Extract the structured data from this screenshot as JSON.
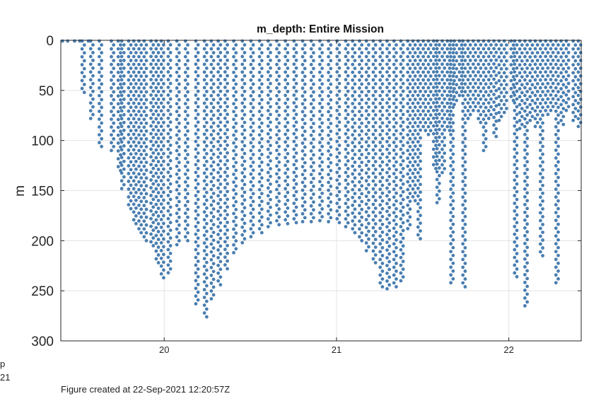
{
  "chart_data": {
    "type": "scatter",
    "title": "m_depth: Entire Mission",
    "xlabel": "",
    "ylabel": "m",
    "xlim": [
      19.4,
      22.42
    ],
    "ylim": [
      0,
      300
    ],
    "y_reversed": true,
    "x_ticks": [
      20,
      21,
      22
    ],
    "x_tick_labels": [
      "20",
      "21",
      "22"
    ],
    "y_ticks": [
      0,
      50,
      100,
      150,
      200,
      250,
      300
    ],
    "y_tick_labels": [
      "0",
      "50",
      "100",
      "150",
      "200",
      "250",
      "300"
    ],
    "grid": true,
    "marker_color": "#4a7eb0",
    "series": [
      {
        "name": "m_depth",
        "profiles": [
          {
            "x": 19.53,
            "max_depth": 52
          },
          {
            "x": 19.58,
            "max_depth": 78
          },
          {
            "x": 19.63,
            "max_depth": 106
          },
          {
            "x": 19.7,
            "max_depth": 110
          },
          {
            "x": 19.74,
            "max_depth": 130
          },
          {
            "x": 19.76,
            "max_depth": 148
          },
          {
            "x": 19.8,
            "max_depth": 168
          },
          {
            "x": 19.83,
            "max_depth": 183
          },
          {
            "x": 19.86,
            "max_depth": 192
          },
          {
            "x": 19.89,
            "max_depth": 200
          },
          {
            "x": 19.93,
            "max_depth": 205
          },
          {
            "x": 19.96,
            "max_depth": 222
          },
          {
            "x": 19.99,
            "max_depth": 237
          },
          {
            "x": 20.03,
            "max_depth": 232
          },
          {
            "x": 20.08,
            "max_depth": 204
          },
          {
            "x": 20.13,
            "max_depth": 200
          },
          {
            "x": 20.19,
            "max_depth": 263
          },
          {
            "x": 20.24,
            "max_depth": 276
          },
          {
            "x": 20.28,
            "max_depth": 258
          },
          {
            "x": 20.32,
            "max_depth": 244
          },
          {
            "x": 20.36,
            "max_depth": 228
          },
          {
            "x": 20.41,
            "max_depth": 212
          },
          {
            "x": 20.46,
            "max_depth": 202
          },
          {
            "x": 20.51,
            "max_depth": 196
          },
          {
            "x": 20.56,
            "max_depth": 192
          },
          {
            "x": 20.61,
            "max_depth": 186
          },
          {
            "x": 20.66,
            "max_depth": 184
          },
          {
            "x": 20.71,
            "max_depth": 183
          },
          {
            "x": 20.76,
            "max_depth": 182
          },
          {
            "x": 20.81,
            "max_depth": 181
          },
          {
            "x": 20.86,
            "max_depth": 181
          },
          {
            "x": 20.91,
            "max_depth": 180
          },
          {
            "x": 20.96,
            "max_depth": 181
          },
          {
            "x": 21.01,
            "max_depth": 182
          },
          {
            "x": 21.06,
            "max_depth": 186
          },
          {
            "x": 21.1,
            "max_depth": 192
          },
          {
            "x": 21.14,
            "max_depth": 200
          },
          {
            "x": 21.18,
            "max_depth": 210
          },
          {
            "x": 21.22,
            "max_depth": 222
          },
          {
            "x": 21.26,
            "max_depth": 246
          },
          {
            "x": 21.3,
            "max_depth": 248
          },
          {
            "x": 21.34,
            "max_depth": 246
          },
          {
            "x": 21.38,
            "max_depth": 240
          },
          {
            "x": 21.42,
            "max_depth": 188
          },
          {
            "x": 21.45,
            "max_depth": 160
          },
          {
            "x": 21.48,
            "max_depth": 198
          },
          {
            "x": 21.51,
            "max_depth": 90
          },
          {
            "x": 21.54,
            "max_depth": 94
          },
          {
            "x": 21.57,
            "max_depth": 128
          },
          {
            "x": 21.59,
            "max_depth": 162
          },
          {
            "x": 21.62,
            "max_depth": 132
          },
          {
            "x": 21.65,
            "max_depth": 90
          },
          {
            "x": 21.67,
            "max_depth": 242
          },
          {
            "x": 21.69,
            "max_depth": 64
          },
          {
            "x": 21.72,
            "max_depth": 55
          },
          {
            "x": 21.74,
            "max_depth": 246
          },
          {
            "x": 21.77,
            "max_depth": 78
          },
          {
            "x": 21.8,
            "max_depth": 70
          },
          {
            "x": 21.83,
            "max_depth": 82
          },
          {
            "x": 21.86,
            "max_depth": 110
          },
          {
            "x": 21.89,
            "max_depth": 78
          },
          {
            "x": 21.92,
            "max_depth": 96
          },
          {
            "x": 21.95,
            "max_depth": 80
          },
          {
            "x": 21.98,
            "max_depth": 72
          },
          {
            "x": 22.02,
            "max_depth": 60
          },
          {
            "x": 22.04,
            "max_depth": 236
          },
          {
            "x": 22.07,
            "max_depth": 88
          },
          {
            "x": 22.1,
            "max_depth": 265
          },
          {
            "x": 22.13,
            "max_depth": 80
          },
          {
            "x": 22.16,
            "max_depth": 86
          },
          {
            "x": 22.19,
            "max_depth": 215
          },
          {
            "x": 22.22,
            "max_depth": 74
          },
          {
            "x": 22.25,
            "max_depth": 70
          },
          {
            "x": 22.28,
            "max_depth": 242
          },
          {
            "x": 22.31,
            "max_depth": 84
          },
          {
            "x": 22.34,
            "max_depth": 70
          },
          {
            "x": 22.38,
            "max_depth": 80
          },
          {
            "x": 22.41,
            "max_depth": 86
          }
        ]
      }
    ]
  },
  "footer": {
    "created_text": "Figure created at 22-Sep-2021 12:20:57Z",
    "clipped_line1": "p",
    "clipped_line2": "21"
  }
}
